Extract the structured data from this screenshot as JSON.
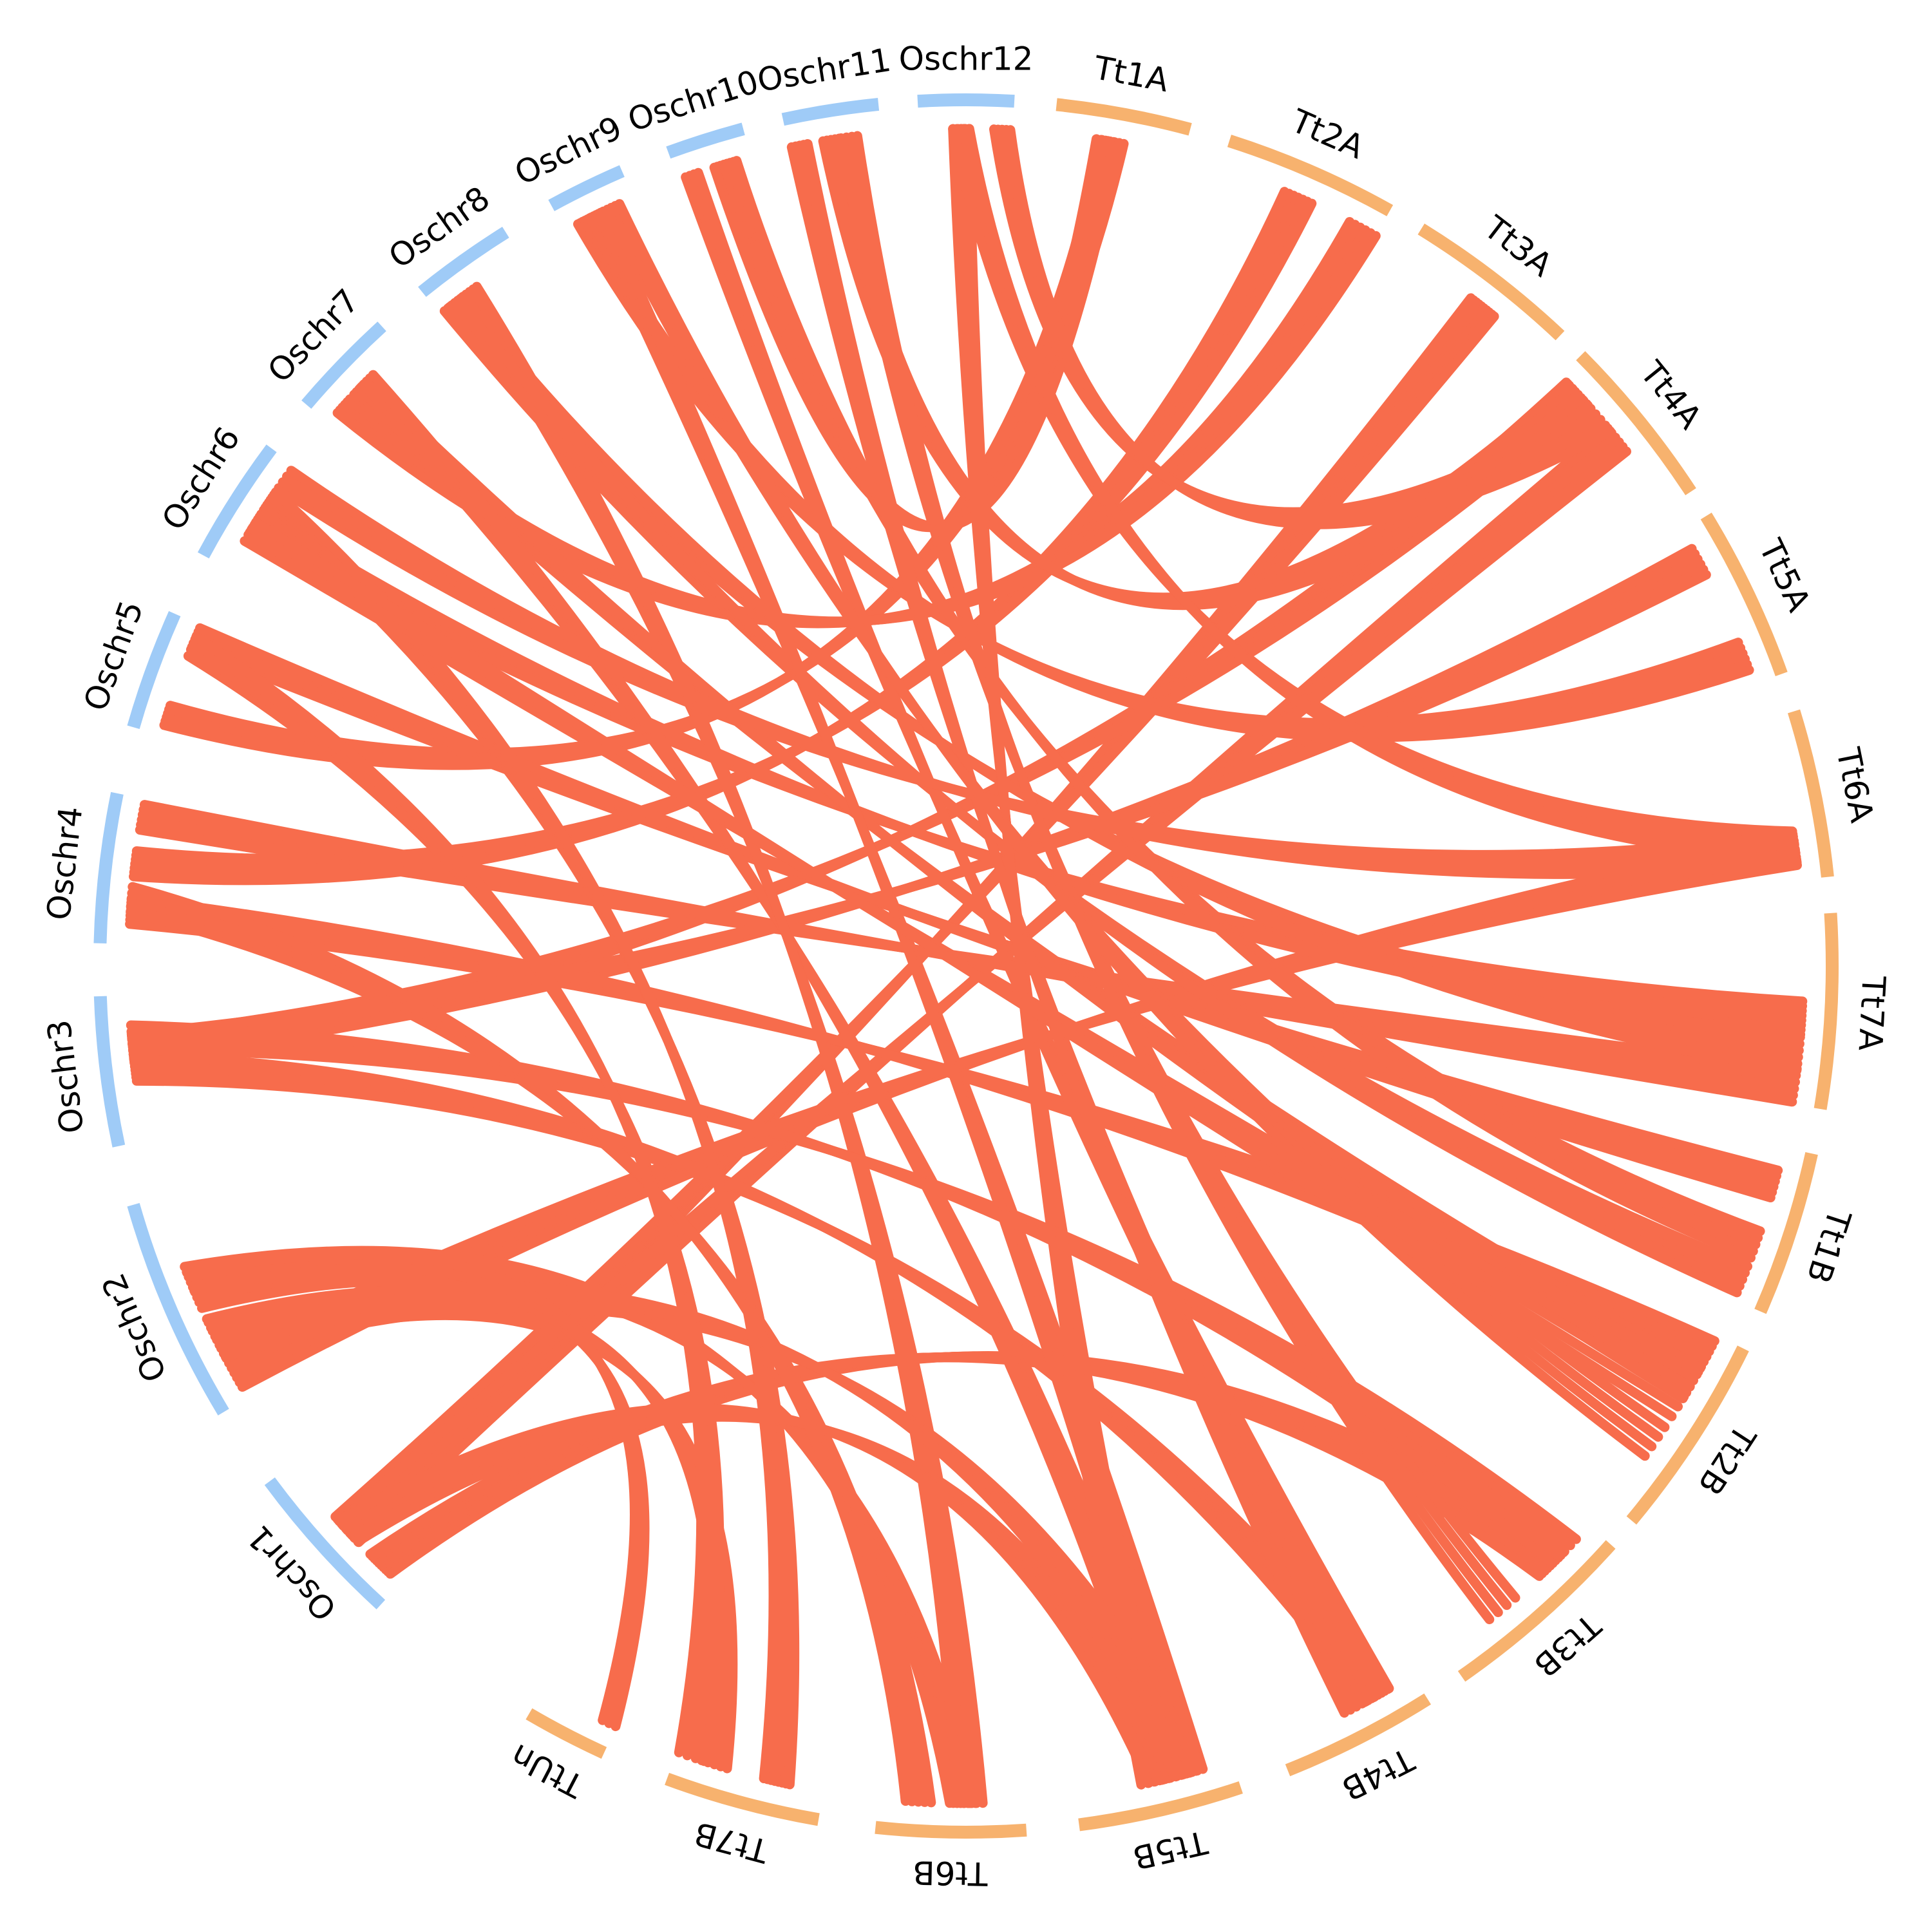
{
  "colors": {
    "rice": "#9fcbf7",
    "wheat": "#f7b26e",
    "link": "#f76c4c",
    "label": "#000000",
    "background": "#ffffff"
  },
  "chromosomes": [
    {
      "id": "Oschr1",
      "label": "Oschr1",
      "genome": "rice"
    },
    {
      "id": "Oschr2",
      "label": "Oschr2",
      "genome": "rice"
    },
    {
      "id": "Oschr3",
      "label": "Oschr3",
      "genome": "rice"
    },
    {
      "id": "Oschr4",
      "label": "Oschr4",
      "genome": "rice"
    },
    {
      "id": "Oschr5",
      "label": "Oschr5",
      "genome": "rice"
    },
    {
      "id": "Oschr6",
      "label": "Oschr6",
      "genome": "rice"
    },
    {
      "id": "Oschr7",
      "label": "Oschr7",
      "genome": "rice"
    },
    {
      "id": "Oschr8",
      "label": "Oschr8",
      "genome": "rice"
    },
    {
      "id": "Oschr9",
      "label": "Oschr9",
      "genome": "rice"
    },
    {
      "id": "Oschr10",
      "label": "Oschr10",
      "genome": "rice"
    },
    {
      "id": "Oschr11",
      "label": "Oschr11",
      "genome": "rice"
    },
    {
      "id": "Oschr12",
      "label": "Oschr12",
      "genome": "rice"
    },
    {
      "id": "Tt1A",
      "label": "Tt1A",
      "genome": "wheat"
    },
    {
      "id": "Tt2A",
      "label": "Tt2A",
      "genome": "wheat"
    },
    {
      "id": "Tt3A",
      "label": "Tt3A",
      "genome": "wheat"
    },
    {
      "id": "Tt4A",
      "label": "Tt4A",
      "genome": "wheat"
    },
    {
      "id": "Tt5A",
      "label": "Tt5A",
      "genome": "wheat"
    },
    {
      "id": "Tt6A",
      "label": "Tt6A",
      "genome": "wheat"
    },
    {
      "id": "Tt7A",
      "label": "Tt7A",
      "genome": "wheat"
    },
    {
      "id": "Tt1B",
      "label": "Tt1B",
      "genome": "wheat"
    },
    {
      "id": "Tt2B",
      "label": "Tt2B",
      "genome": "wheat"
    },
    {
      "id": "Tt3B",
      "label": "Tt3B",
      "genome": "wheat"
    },
    {
      "id": "Tt4B",
      "label": "Tt4B",
      "genome": "wheat"
    },
    {
      "id": "Tt5B",
      "label": "Tt5B",
      "genome": "wheat"
    },
    {
      "id": "Tt6B",
      "label": "Tt6B",
      "genome": "wheat"
    },
    {
      "id": "Tt7B",
      "label": "Tt7B",
      "genome": "wheat"
    },
    {
      "id": "TtUn",
      "label": "TtUn",
      "genome": "wheat"
    }
  ],
  "links": [
    {
      "from": "Oschr1",
      "to": "Tt3A",
      "bundle": 10
    },
    {
      "from": "Oschr1",
      "to": "Tt3B",
      "bundle": 10
    },
    {
      "from": "Oschr1",
      "to": "Tt4A",
      "bundle": 6
    },
    {
      "from": "Oschr2",
      "to": "Tt6A",
      "bundle": 8
    },
    {
      "from": "Oschr2",
      "to": "Tt6B",
      "bundle": 8
    },
    {
      "from": "Oschr2",
      "to": "Tt7B",
      "bundle": 5
    },
    {
      "from": "Oschr3",
      "to": "Tt4A",
      "bundle": 8
    },
    {
      "from": "Oschr3",
      "to": "Tt4B",
      "bundle": 8
    },
    {
      "from": "Oschr3",
      "to": "Tt5A",
      "bundle": 6
    },
    {
      "from": "Oschr4",
      "to": "Tt2A",
      "bundle": 7
    },
    {
      "from": "Oschr4",
      "to": "Tt2B",
      "bundle": 7
    },
    {
      "from": "Oschr4",
      "to": "Tt7A",
      "bundle": 6
    },
    {
      "from": "Oschr5",
      "to": "Tt1A",
      "bundle": 6
    },
    {
      "from": "Oschr5",
      "to": "Tt1B",
      "bundle": 6
    },
    {
      "from": "Oschr6",
      "to": "Tt7A",
      "bundle": 8
    },
    {
      "from": "Oschr6",
      "to": "Tt7B",
      "bundle": 8
    },
    {
      "from": "Oschr7",
      "to": "Tt2A",
      "bundle": 6
    },
    {
      "from": "Oschr7",
      "to": "Tt2B",
      "bundle": 6
    },
    {
      "from": "Oschr7",
      "to": "Tt5B",
      "bundle": 5
    },
    {
      "from": "Oschr8",
      "to": "Tt7A",
      "bundle": 6
    },
    {
      "from": "Oschr8",
      "to": "Tt6B",
      "bundle": 5
    },
    {
      "from": "Oschr8",
      "to": "Tt1B",
      "bundle": 5
    },
    {
      "from": "Oschr9",
      "to": "Tt5A",
      "bundle": 6
    },
    {
      "from": "Oschr9",
      "to": "Tt5B",
      "bundle": 6
    },
    {
      "from": "Oschr10",
      "to": "Tt1A",
      "bundle": 5
    },
    {
      "from": "Oschr10",
      "to": "Tt1B",
      "bundle": 5
    },
    {
      "from": "Oschr10",
      "to": "Tt4B",
      "bundle": 4
    },
    {
      "from": "Oschr11",
      "to": "Tt4A",
      "bundle": 5
    },
    {
      "from": "Oschr11",
      "to": "Tt4B",
      "bundle": 5
    },
    {
      "from": "Oschr11",
      "to": "Tt3B",
      "bundle": 4
    },
    {
      "from": "Oschr12",
      "to": "Tt4A",
      "bundle": 5
    },
    {
      "from": "Oschr12",
      "to": "Tt5B",
      "bundle": 5
    },
    {
      "from": "Oschr12",
      "to": "Tt6A",
      "bundle": 4
    },
    {
      "from": "Oschr1",
      "to": "Tt5B",
      "bundle": 6
    },
    {
      "from": "Oschr2",
      "to": "Tt5B",
      "bundle": 5
    },
    {
      "from": "Oschr3",
      "to": "Tt3B",
      "bundle": 5
    },
    {
      "from": "Oschr4",
      "to": "Tt6B",
      "bundle": 5
    },
    {
      "from": "Oschr5",
      "to": "Tt7B",
      "bundle": 4
    },
    {
      "from": "Oschr6",
      "to": "Tt6A",
      "bundle": 4
    },
    {
      "from": "Oschr9",
      "to": "Tt2B",
      "bundle": 4
    },
    {
      "from": "Oschr2",
      "to": "TtUn",
      "bundle": 3
    },
    {
      "from": "Oschr6",
      "to": "Tt2B",
      "bundle": 4
    }
  ]
}
